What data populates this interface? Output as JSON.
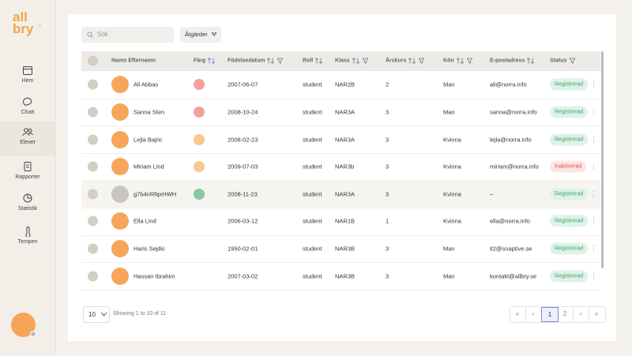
{
  "logo": {
    "line1": "all",
    "line2": "bry"
  },
  "nav": [
    {
      "label": "Hem"
    },
    {
      "label": "Chatt"
    },
    {
      "label": "Elever",
      "active": true
    },
    {
      "label": "Rapporter"
    },
    {
      "label": "Statistik"
    },
    {
      "label": "Tempen"
    }
  ],
  "toolbar": {
    "search_placeholder": "Sök",
    "actions_button": "Åtgärder"
  },
  "table": {
    "columns": [
      "Namn Efternamn",
      "Färg",
      "Födelsedatum",
      "Roll",
      "Klass",
      "Årskurs",
      "Kön",
      "E-postadress",
      "Status"
    ],
    "rows": [
      {
        "name": "Ali Abbas",
        "color": "#f2a19d",
        "birth": "2007-06-07",
        "role": "student",
        "class": "NAR2B",
        "grade": "2",
        "gender": "Man",
        "email": "ali@norra.info",
        "status": "Registrerad"
      },
      {
        "name": "Sanna Sten",
        "color": "#f2a19d",
        "birth": "2008-10-24",
        "role": "student",
        "class": "NAR3A",
        "grade": "3",
        "gender": "Man",
        "email": "sanna@norra.info",
        "status": "Registrerad"
      },
      {
        "name": "Lejla Bajric",
        "color": "#f8c88f",
        "birth": "2008-02-23",
        "role": "student",
        "class": "NAR3A",
        "grade": "3",
        "gender": "Kvinna",
        "email": "lejla@norra.info",
        "status": "Registrerad"
      },
      {
        "name": "Miriam Lind",
        "color": "#f8c88f",
        "birth": "2009-07-03",
        "role": "student",
        "class": "NAR3b",
        "grade": "3",
        "gender": "Kvinna",
        "email": "miriam@norra.info",
        "status": "Inaktiverad"
      },
      {
        "name": "g7b4nRfqxHWH",
        "color": "#86c9a2",
        "birth": "2008-11-23",
        "role": "student",
        "class": "NAR3A",
        "grade": "3",
        "gender": "Kvinna",
        "email": "–",
        "status": "Registrerad"
      },
      {
        "name": "Ella Lind",
        "color": null,
        "birth": "2006-03-12",
        "role": "student",
        "class": "NAR1B",
        "grade": "1",
        "gender": "Kvinna",
        "email": "ella@norra.info",
        "status": "Registrerad"
      },
      {
        "name": "Haris Sejdic",
        "color": null,
        "birth": "1950-02-01",
        "role": "student",
        "class": "NAR3B",
        "grade": "3",
        "gender": "Man",
        "email": "it2@snaptive.se",
        "status": "Registrerad"
      },
      {
        "name": "Hassan Ibrahim",
        "color": null,
        "birth": "2007-03-02",
        "role": "student",
        "class": "NAR3B",
        "grade": "3",
        "gender": "Man",
        "email": "kontakt@allbry.se",
        "status": "Registrerad"
      }
    ]
  },
  "footer": {
    "page_size": "10",
    "showing": "Showing 1 to 10 of 11",
    "first": "«",
    "prev": "‹",
    "pages": [
      {
        "label": "1",
        "current": true
      },
      {
        "label": "2"
      }
    ],
    "next": "›",
    "last": "»"
  }
}
